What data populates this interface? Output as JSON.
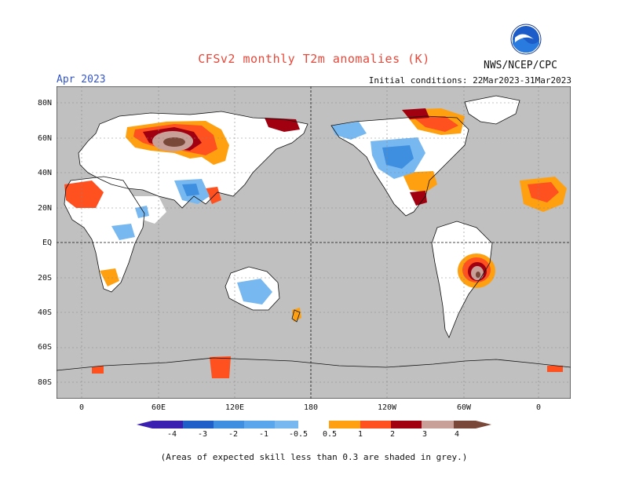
{
  "header": {
    "title": "CFSv2 monthly T2m anomalies (K)",
    "month": "Apr 2023",
    "initial_conditions": "Initial conditions: 22Mar2023-31Mar2023",
    "agency": "NWS/NCEP/CPC",
    "logo_text": "NOAA"
  },
  "map": {
    "lat_labels": [
      "80N",
      "60N",
      "40N",
      "20N",
      "EQ",
      "20S",
      "40S",
      "60S",
      "80S"
    ],
    "lon_labels": [
      "0",
      "60E",
      "120E",
      "180",
      "120W",
      "60W",
      "0"
    ],
    "mask_color": "#c0c0c0"
  },
  "colorbar": {
    "labels": [
      "-4",
      "-3",
      "-2",
      "-1",
      "-0.5",
      "0.5",
      "1",
      "2",
      "3",
      "4"
    ],
    "colors": [
      "#3b1fb0",
      "#1f5fc8",
      "#3f8fe0",
      "#78b8f0",
      "#ffffff",
      "#ffa010",
      "#ff5020",
      "#a00010",
      "#c8a098",
      "#7a4838"
    ]
  },
  "footnote": "(Areas of expected skill less than 0.3 are shaded in grey.)"
}
